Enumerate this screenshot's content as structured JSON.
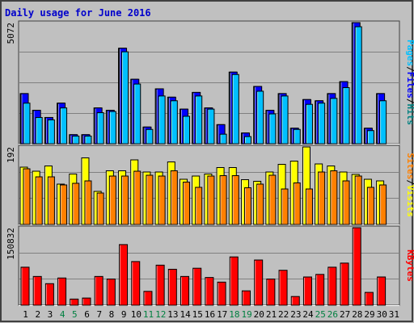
{
  "page_title": "Daily usage for June 2016",
  "colors": {
    "background": "#c0c0c0",
    "frame_dark": "#404040",
    "frame_light": "#ffffff",
    "grid": "#808080",
    "title": "#0000cc",
    "weekday_label": "#000000",
    "weekend_label": "#008040",
    "pages": "#00c0ff",
    "files": "#0000ff",
    "hits": "#008080",
    "visits": "#ffff00",
    "sites": "#ff8000",
    "kbytes": "#ff0000",
    "sep": "#000000"
  },
  "side_labels": {
    "sep": "/",
    "pages": "Pages",
    "files": "Files",
    "hits": "Hits",
    "sites": "Sites",
    "visits": "Visits",
    "kbytes": "KBytes"
  },
  "chart_data": {
    "type": "bar",
    "title": "Daily usage for June 2016",
    "categories": [
      "1",
      "2",
      "3",
      "4",
      "5",
      "6",
      "7",
      "8",
      "9",
      "10",
      "11",
      "12",
      "13",
      "14",
      "15",
      "16",
      "17",
      "18",
      "19",
      "20",
      "21",
      "22",
      "23",
      "24",
      "25",
      "26",
      "27",
      "28",
      "29",
      "30",
      "31"
    ],
    "weekend_days": [
      "4",
      "5",
      "11",
      "12",
      "18",
      "19",
      "25",
      "26"
    ],
    "panels": [
      {
        "name": "hits_files_pages",
        "ylim": [
          0,
          5072
        ],
        "max_label": "5072",
        "series": [
          {
            "name": "Hits",
            "values": [
              2100,
              1400,
              1100,
              1700,
              380,
              380,
              1500,
              1400,
              4000,
              2700,
              700,
              2300,
              1950,
              1450,
              2150,
              1500,
              800,
              3000,
              450,
              2400,
              1400,
              2100,
              650,
              1850,
              1800,
              2100,
              2600,
              5072,
              650,
              2100,
              0
            ]
          },
          {
            "name": "Files",
            "values": [
              2100,
              1400,
              1100,
              1700,
              380,
              380,
              1500,
              1400,
              4000,
              2700,
              700,
              2300,
              1950,
              1450,
              2150,
              1500,
              800,
              3000,
              450,
              2400,
              1400,
              2100,
              650,
              1850,
              1800,
              2100,
              2600,
              5072,
              650,
              2100,
              0
            ]
          },
          {
            "name": "Pages",
            "values": [
              1700,
              1100,
              1000,
              1500,
              320,
              320,
              1300,
              1350,
              3850,
              2500,
              600,
              2000,
              1800,
              1150,
              2000,
              1450,
              400,
              2900,
              300,
              2200,
              1250,
              2000,
              600,
              1650,
              1700,
              1900,
              2350,
              4900,
              550,
              1800,
              0
            ]
          }
        ]
      },
      {
        "name": "visits_sites",
        "ylim": [
          0,
          192
        ],
        "max_label": "192",
        "series": [
          {
            "name": "Visits",
            "values": [
              142,
              132,
              145,
              100,
              125,
              165,
              82,
              133,
              133,
              160,
              130,
              130,
              155,
              112,
              120,
              125,
              141,
              141,
              111,
              107,
              130,
              149,
              157,
              192,
              150,
              145,
              130,
              124,
              112,
              108,
              0
            ]
          },
          {
            "name": "Sites",
            "values": [
              138,
              118,
              118,
              98,
              102,
              108,
              78,
              120,
              120,
              132,
              122,
              120,
              133,
              105,
              92,
              120,
              121,
              121,
              91,
              100,
              122,
              88,
              103,
              88,
              130,
              133,
              108,
              120,
              92,
              98,
              0
            ]
          }
        ]
      },
      {
        "name": "kbytes",
        "ylim": [
          0,
          150832
        ],
        "max_label": "150832",
        "series": [
          {
            "name": "KBytes",
            "values": [
              74000,
              56000,
              42000,
              53000,
              12000,
              14000,
              56000,
              51000,
              118000,
              85000,
              27000,
              78000,
              70000,
              56000,
              72000,
              54000,
              45000,
              94000,
              28000,
              88000,
              51000,
              68000,
              17000,
              55000,
              60000,
              74000,
              82000,
              150832,
              25000,
              55000,
              0
            ]
          }
        ]
      }
    ]
  }
}
